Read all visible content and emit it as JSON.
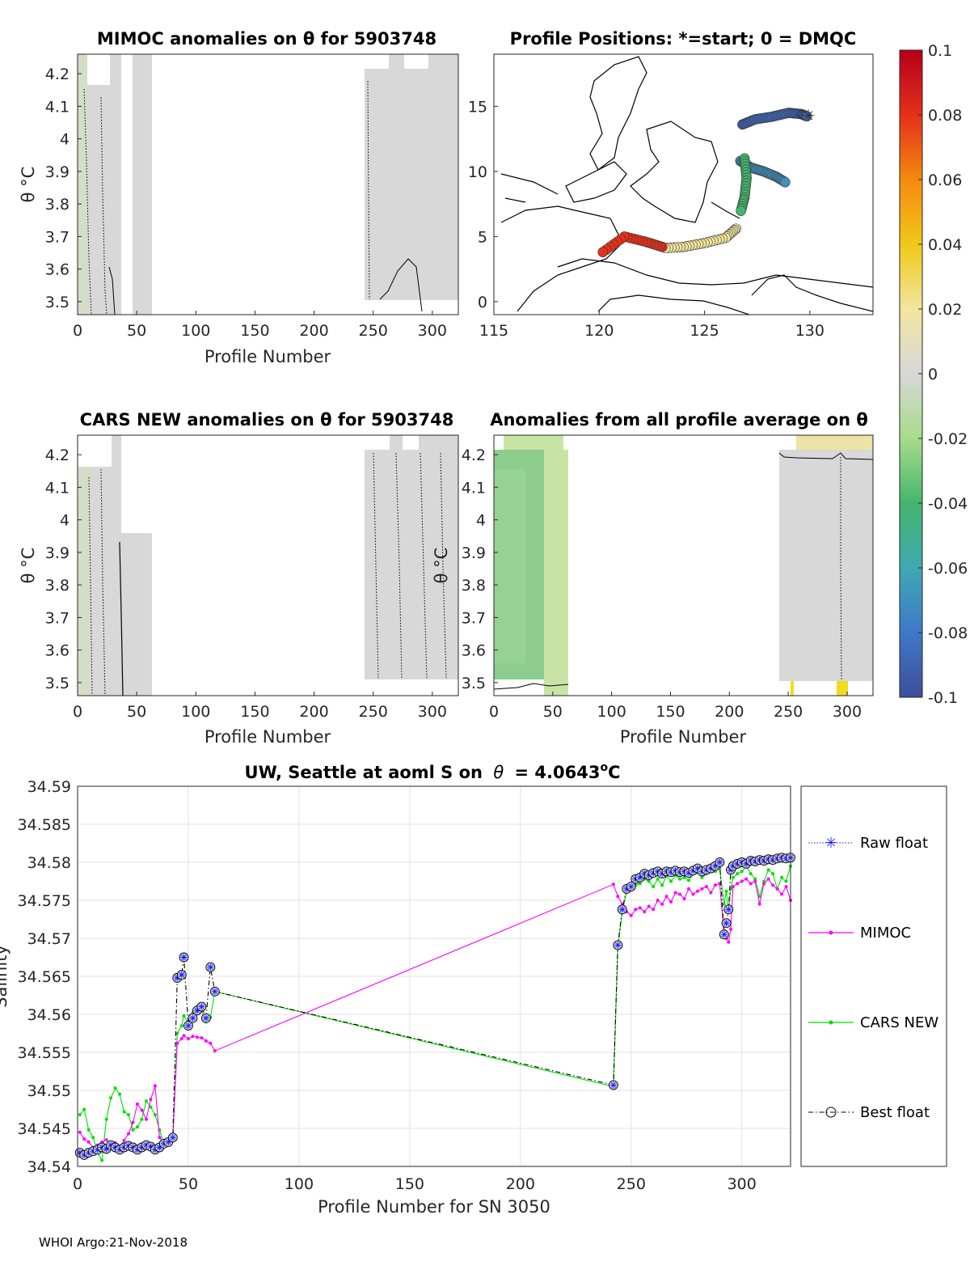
{
  "footer": "WHOI Argo:21-Nov-2018",
  "colorbar": {
    "ticks": [
      "0.1",
      "0.08",
      "0.06",
      "0.04",
      "0.02",
      "0",
      "-0.02",
      "-0.04",
      "-0.06",
      "-0.08",
      "-0.1"
    ],
    "range": [
      -0.1,
      0.1
    ]
  },
  "chart_data": [
    {
      "type": "heatmap",
      "title": "MIMOC anomalies on θ  for 5903748",
      "xlabel": "Profile Number",
      "ylabel": "θ °C",
      "xlim": [
        0,
        322
      ],
      "ylim": [
        3.46,
        4.26
      ],
      "xticks": [
        "0",
        "50",
        "100",
        "150",
        "200",
        "250",
        "300"
      ],
      "yticks": [
        "3.5",
        "3.6",
        "3.7",
        "3.8",
        "3.9",
        "4",
        "4.1",
        "4.2"
      ],
      "data_extent": [
        [
          0,
          62
        ],
        [
          242,
          322
        ]
      ],
      "anomaly_range": [
        -0.02,
        0.02
      ]
    },
    {
      "type": "scatter",
      "title": "Profile Positions: *=start; 0 = DMQC",
      "xlim": [
        115,
        133
      ],
      "ylim": [
        -1,
        19
      ],
      "xticks": [
        "115",
        "120",
        "125",
        "130"
      ],
      "yticks": [
        "0",
        "5",
        "10",
        "15"
      ],
      "start_marker": [
        129.9,
        14.2
      ],
      "track_segments": [
        {
          "anomaly": -0.09,
          "lon": [
            126.8,
            127.4,
            128.2,
            129.0,
            129.6,
            129.9
          ],
          "lat": [
            13.6,
            14.0,
            14.2,
            14.5,
            14.4,
            14.2
          ]
        },
        {
          "anomaly": -0.07,
          "lon": [
            126.7,
            127.2,
            127.8,
            128.4,
            128.9
          ],
          "lat": [
            10.8,
            10.3,
            10.0,
            9.6,
            9.1
          ]
        },
        {
          "anomaly": -0.04,
          "lon": [
            126.9,
            127.0,
            126.9,
            126.7
          ],
          "lat": [
            11.0,
            9.5,
            8.0,
            6.8
          ]
        },
        {
          "anomaly": 0.02,
          "lon": [
            126.5,
            126.0,
            125.0,
            124.0,
            123.0
          ],
          "lat": [
            5.6,
            4.9,
            4.5,
            4.2,
            4.1
          ]
        },
        {
          "anomaly": 0.08,
          "lon": [
            123.0,
            122.2,
            121.2,
            120.0
          ],
          "lat": [
            4.2,
            4.6,
            5.0,
            3.6
          ]
        }
      ]
    },
    {
      "type": "heatmap",
      "title": "CARS NEW anomalies on θ for 5903748",
      "xlabel": "Profile Number",
      "ylabel": "θ °C",
      "xlim": [
        0,
        322
      ],
      "ylim": [
        3.46,
        4.26
      ],
      "xticks": [
        "0",
        "50",
        "100",
        "150",
        "200",
        "250",
        "300"
      ],
      "yticks": [
        "3.5",
        "3.6",
        "3.7",
        "3.8",
        "3.9",
        "4",
        "4.1",
        "4.2"
      ],
      "data_extent": [
        [
          0,
          64
        ],
        [
          242,
          322
        ]
      ],
      "anomaly_range": [
        -0.02,
        0.02
      ]
    },
    {
      "type": "heatmap",
      "title": "Anomalies from all profile average on θ",
      "xlabel": "Profile Number",
      "ylabel": "θ °C",
      "xlim": [
        0,
        322
      ],
      "ylim": [
        3.46,
        4.26
      ],
      "xticks": [
        "0",
        "50",
        "100",
        "150",
        "200",
        "250",
        "300"
      ],
      "yticks": [
        "3.5",
        "3.6",
        "3.7",
        "3.8",
        "3.9",
        "4",
        "4.1",
        "4.2"
      ],
      "data_extent": [
        [
          0,
          64
        ],
        [
          242,
          322
        ]
      ],
      "anomaly_range": [
        -0.04,
        0.04
      ]
    },
    {
      "type": "line",
      "title": "UW, Seattle at aoml S on θ = 4.0643°C",
      "title_main": "UW, Seattle at aoml S on",
      "title_tail": "= 4.0643",
      "title_unit": "o",
      "title_end": "C",
      "xlabel": "Profile Number for SN 3050",
      "ylabel": "Salinity",
      "xlim": [
        0,
        322
      ],
      "ylim": [
        34.54,
        34.59
      ],
      "xticks": [
        "0",
        "50",
        "100",
        "150",
        "200",
        "250",
        "300"
      ],
      "yticks": [
        "34.54",
        "34.545",
        "34.55",
        "34.555",
        "34.56",
        "34.565",
        "34.57",
        "34.575",
        "34.58",
        "34.585",
        "34.59"
      ],
      "legend": [
        "Raw float",
        "MIMOC",
        "CARS NEW",
        "Best float"
      ],
      "legend_position": "right",
      "series": [
        {
          "name": "Best float",
          "x": [
            1,
            3,
            5,
            7,
            9,
            11,
            13,
            15,
            17,
            19,
            21,
            23,
            25,
            27,
            29,
            31,
            33,
            35,
            37,
            39,
            41,
            43,
            45,
            47,
            48,
            50,
            52,
            54,
            56,
            58,
            60,
            62,
            242,
            244,
            246,
            248,
            250,
            252,
            254,
            256,
            258,
            260,
            262,
            264,
            266,
            268,
            270,
            272,
            274,
            276,
            278,
            280,
            282,
            284,
            286,
            288,
            290,
            292,
            293,
            294,
            295,
            296,
            298,
            300,
            302,
            304,
            306,
            308,
            310,
            312,
            314,
            316,
            318,
            320,
            322
          ],
          "values": [
            34.5418,
            34.5415,
            34.5418,
            34.542,
            34.5422,
            34.5425,
            34.5423,
            34.5428,
            34.5425,
            34.5422,
            34.5425,
            34.5427,
            34.5425,
            34.5422,
            34.5425,
            34.5428,
            34.5426,
            34.5422,
            34.5425,
            34.543,
            34.5432,
            34.5438,
            34.5648,
            34.5652,
            34.5675,
            34.5585,
            34.5595,
            34.5605,
            34.561,
            34.5595,
            34.5662,
            34.563,
            34.5507,
            34.5691,
            34.5738,
            34.5765,
            34.5768,
            34.5778,
            34.578,
            34.5785,
            34.5783,
            34.5786,
            34.5788,
            34.5785,
            34.5788,
            34.5787,
            34.5789,
            34.5787,
            34.5788,
            34.5786,
            34.5789,
            34.5792,
            34.5788,
            34.579,
            34.5792,
            34.5795,
            34.58,
            34.5705,
            34.572,
            34.5738,
            34.579,
            34.5795,
            34.5798,
            34.58,
            34.5798,
            34.5802,
            34.5801,
            34.5803,
            34.5802,
            34.5804,
            34.5803,
            34.5805,
            34.5806,
            34.5805,
            34.5806
          ]
        },
        {
          "name": "MIMOC",
          "x": [
            1,
            3,
            5,
            7,
            9,
            11,
            13,
            15,
            17,
            19,
            21,
            23,
            25,
            27,
            29,
            31,
            33,
            35,
            37,
            39,
            41,
            43,
            45,
            47,
            48,
            50,
            52,
            54,
            56,
            58,
            60,
            62,
            242,
            244,
            246,
            248,
            250,
            252,
            254,
            256,
            258,
            260,
            262,
            264,
            266,
            268,
            270,
            272,
            274,
            276,
            278,
            280,
            282,
            284,
            286,
            288,
            290,
            292,
            293,
            294,
            295,
            296,
            298,
            300,
            302,
            304,
            306,
            308,
            310,
            312,
            314,
            316,
            318,
            320,
            322
          ],
          "values": [
            34.5445,
            34.5436,
            34.5432,
            34.5425,
            34.5428,
            34.5432,
            34.5435,
            34.5426,
            34.5431,
            34.5424,
            34.5434,
            34.5443,
            34.5458,
            34.5482,
            34.5474,
            34.5462,
            34.5488,
            34.5506,
            34.5438,
            34.543,
            34.543,
            34.5436,
            34.5562,
            34.5568,
            34.5572,
            34.5568,
            34.5571,
            34.557,
            34.5569,
            34.5565,
            34.5562,
            34.5552,
            34.5771,
            34.5755,
            34.5745,
            34.5735,
            34.573,
            34.5738,
            34.574,
            34.5735,
            34.5742,
            34.5738,
            34.575,
            34.5745,
            34.5755,
            34.5748,
            34.576,
            34.5758,
            34.5752,
            34.5765,
            34.5758,
            34.5762,
            34.5765,
            34.5768,
            34.576,
            34.577,
            34.5772,
            34.5705,
            34.57,
            34.5695,
            34.5712,
            34.5768,
            34.5772,
            34.5775,
            34.5778,
            34.5772,
            34.5775,
            34.5745,
            34.5772,
            34.5778,
            34.577,
            34.5765,
            34.5758,
            34.5768,
            34.575
          ]
        },
        {
          "name": "CARS NEW",
          "x": [
            1,
            3,
            5,
            7,
            9,
            11,
            13,
            15,
            17,
            19,
            21,
            23,
            25,
            27,
            29,
            31,
            33,
            35,
            37,
            39,
            41,
            43,
            45,
            47,
            48,
            50,
            52,
            54,
            56,
            58,
            60,
            62,
            242,
            244,
            246,
            248,
            250,
            252,
            254,
            256,
            258,
            260,
            262,
            264,
            266,
            268,
            270,
            272,
            274,
            276,
            278,
            280,
            282,
            284,
            286,
            288,
            290,
            292,
            293,
            294,
            295,
            296,
            298,
            300,
            302,
            304,
            306,
            308,
            310,
            312,
            314,
            316,
            318,
            320,
            322
          ],
          "values": [
            34.5468,
            34.5475,
            34.5448,
            34.5438,
            34.5418,
            34.5408,
            34.5462,
            34.549,
            34.5503,
            34.5495,
            34.5472,
            34.5468,
            34.5448,
            34.5452,
            34.5462,
            34.5486,
            34.5478,
            34.5468,
            34.5448,
            34.543,
            34.5432,
            34.5435,
            34.5575,
            34.5585,
            34.5598,
            34.5588,
            34.5602,
            34.561,
            34.5605,
            34.559,
            34.5596,
            34.563,
            34.5505,
            34.5688,
            34.5735,
            34.5762,
            34.5765,
            34.577,
            34.5772,
            34.5778,
            34.5775,
            34.5768,
            34.5778,
            34.577,
            34.5782,
            34.5775,
            34.5783,
            34.5778,
            34.578,
            34.5776,
            34.5785,
            34.5787,
            34.578,
            34.5785,
            34.579,
            34.5788,
            34.5792,
            34.5745,
            34.5762,
            34.5735,
            34.5765,
            34.578,
            34.5785,
            34.5788,
            34.5795,
            34.5785,
            34.5778,
            34.5755,
            34.5775,
            34.579,
            34.5785,
            34.5765,
            34.578,
            34.5775,
            34.5795
          ]
        }
      ]
    }
  ]
}
